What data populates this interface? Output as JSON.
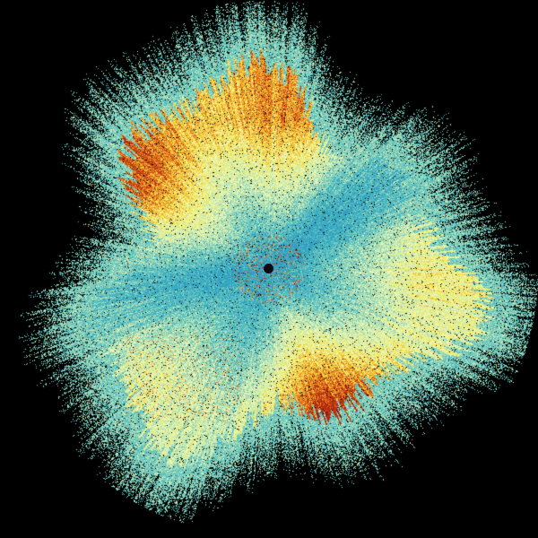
{
  "background": "#000000",
  "colormap": [
    "#3b8fc4",
    "#2f9fc0",
    "#41b6c4",
    "#7fcdbb",
    "#c7e9b4",
    "#edf8b1",
    "#f3e85a",
    "#f0b030",
    "#d9651a",
    "#b52a10"
  ],
  "center_marker_color": "#0a0a14"
}
